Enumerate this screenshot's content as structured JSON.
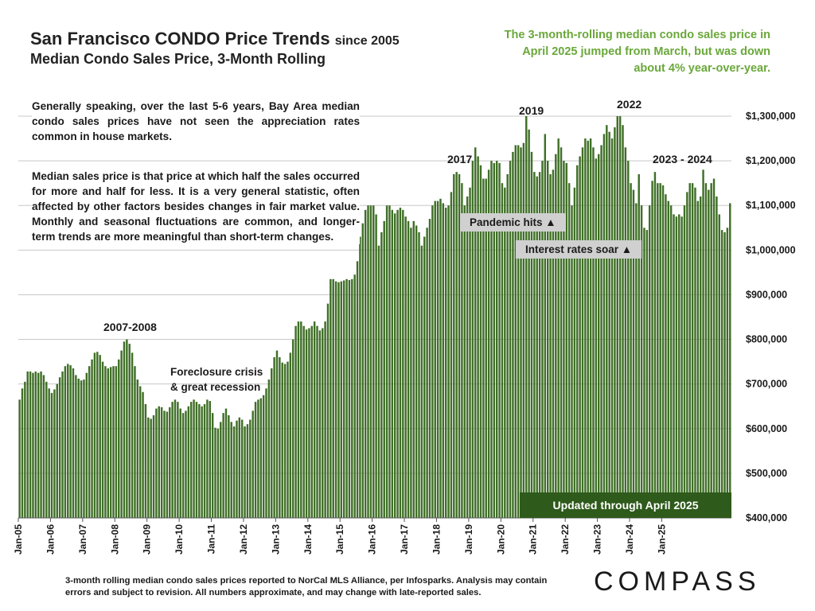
{
  "header": {
    "title": "San Francisco CONDO Price Trends",
    "title_suffix": "since 2005",
    "subtitle": "Median Condo Sales Price, 3-Month Rolling"
  },
  "callout": "The 3-month-rolling median condo sales price in April 2025 jumped from March, but was down about 4% year-over-year.",
  "paragraphs": {
    "p1": "Generally speaking, over the last 5-6 years, Bay Area median condo sales prices have not seen the appreciation rates common in house markets.",
    "p2": "Median sales price is that price at which half the sales occurred for more and half for less. It is a very general statistic, often affected by other factors besides changes in fair market value. Monthly and seasonal fluctuations are common, and longer-term trends are more meaningful than short-term changes."
  },
  "annotations": {
    "y2007": "2007-2008",
    "foreclosure_line1": "Foreclosure crisis",
    "foreclosure_line2": "& great recession",
    "y2017": "2017",
    "y2019": "2019",
    "y2022": "2022",
    "y2023": "2023 - 2024",
    "pandemic": "Pandemic hits ▲",
    "rates": "Interest rates soar ▲",
    "updated": "Updated through April 2025"
  },
  "footnote": "3-month rolling median condo sales prices reported to NorCal MLS Alliance, per Infosparks. Analysis may contain errors and subject to revision. All numbers approximate, and may change with late-reported sales.",
  "logo": "COMPASS",
  "colors": {
    "bar": "#3f6f27",
    "accent_text": "#6aa83a",
    "updated_box": "#2e5a1b",
    "grid": "#c8c8c8"
  },
  "chart_data": {
    "type": "bar",
    "title": "San Francisco CONDO Price Trends since 2005",
    "subtitle": "Median Condo Sales Price, 3-Month Rolling",
    "xlabel": "",
    "ylabel": "",
    "ylim": [
      400000,
      1300000
    ],
    "y_ticks": [
      "$400,000",
      "$500,000",
      "$600,000",
      "$700,000",
      "$800,000",
      "$900,000",
      "$1,000,000",
      "$1,100,000",
      "$1,200,000",
      "$1,300,000"
    ],
    "x_ticks": [
      "Jan-05",
      "Jan-06",
      "Jan-07",
      "Jan-08",
      "Jan-09",
      "Jan-10",
      "Jan-11",
      "Jan-12",
      "Jan-13",
      "Jan-14",
      "Jan-15",
      "Jan-16",
      "Jan-17",
      "Jan-18",
      "Jan-19",
      "Jan-20",
      "Jan-21",
      "Jan-22",
      "Jan-23",
      "Jan-24",
      "Jan-25"
    ],
    "start": "Jan-05",
    "end": "Apr-25",
    "grid": true,
    "values": [
      665000,
      690000,
      705000,
      728000,
      728000,
      725000,
      728000,
      725000,
      728000,
      720000,
      705000,
      690000,
      680000,
      688000,
      700000,
      715000,
      728000,
      740000,
      745000,
      742000,
      735000,
      720000,
      712000,
      708000,
      710000,
      725000,
      740000,
      755000,
      770000,
      772000,
      765000,
      750000,
      740000,
      735000,
      738000,
      740000,
      740000,
      755000,
      775000,
      795000,
      800000,
      790000,
      770000,
      740000,
      710000,
      695000,
      682000,
      655000,
      625000,
      622000,
      630000,
      645000,
      650000,
      648000,
      640000,
      638000,
      648000,
      660000,
      665000,
      660000,
      645000,
      635000,
      640000,
      650000,
      660000,
      665000,
      660000,
      655000,
      650000,
      655000,
      665000,
      662000,
      635000,
      602000,
      600000,
      615000,
      635000,
      645000,
      630000,
      615000,
      605000,
      618000,
      625000,
      620000,
      605000,
      610000,
      620000,
      640000,
      660000,
      665000,
      668000,
      675000,
      690000,
      710000,
      735000,
      760000,
      775000,
      760000,
      748000,
      745000,
      750000,
      770000,
      800000,
      830000,
      840000,
      840000,
      830000,
      822000,
      825000,
      830000,
      840000,
      830000,
      820000,
      825000,
      840000,
      880000,
      935000,
      935000,
      930000,
      928000,
      930000,
      932000,
      935000,
      933000,
      935000,
      945000,
      975000,
      1030000,
      1060000,
      1090000,
      1100000,
      1100000,
      1100000,
      1080000,
      1010000,
      1040000,
      1065000,
      1100000,
      1100000,
      1090000,
      1082000,
      1090000,
      1095000,
      1090000,
      1075000,
      1065000,
      1050000,
      1065000,
      1055000,
      1040000,
      1010000,
      1030000,
      1050000,
      1070000,
      1100000,
      1110000,
      1110000,
      1115000,
      1105000,
      1095000,
      1100000,
      1130000,
      1170000,
      1175000,
      1170000,
      1150000,
      1100000,
      1120000,
      1140000,
      1200000,
      1230000,
      1210000,
      1190000,
      1160000,
      1160000,
      1180000,
      1200000,
      1195000,
      1200000,
      1195000,
      1150000,
      1140000,
      1170000,
      1200000,
      1220000,
      1235000,
      1235000,
      1230000,
      1240000,
      1300000,
      1270000,
      1220000,
      1175000,
      1165000,
      1175000,
      1200000,
      1260000,
      1200000,
      1170000,
      1180000,
      1215000,
      1250000,
      1230000,
      1200000,
      1195000,
      1150000,
      1100000,
      1140000,
      1190000,
      1210000,
      1230000,
      1250000,
      1245000,
      1250000,
      1230000,
      1205000,
      1215000,
      1235000,
      1260000,
      1280000,
      1265000,
      1250000,
      1275000,
      1300000,
      1300000,
      1280000,
      1230000,
      1200000,
      1150000,
      1135000,
      1105000,
      1170000,
      1100000,
      1050000,
      1045000,
      1100000,
      1155000,
      1175000,
      1150000,
      1150000,
      1145000,
      1125000,
      1110000,
      1100000,
      1080000,
      1075000,
      1080000,
      1075000,
      1100000,
      1130000,
      1150000,
      1150000,
      1140000,
      1110000,
      1120000,
      1180000,
      1150000,
      1135000,
      1150000,
      1160000,
      1120000,
      1080000,
      1045000,
      1040000,
      1050000,
      1105000
    ]
  }
}
